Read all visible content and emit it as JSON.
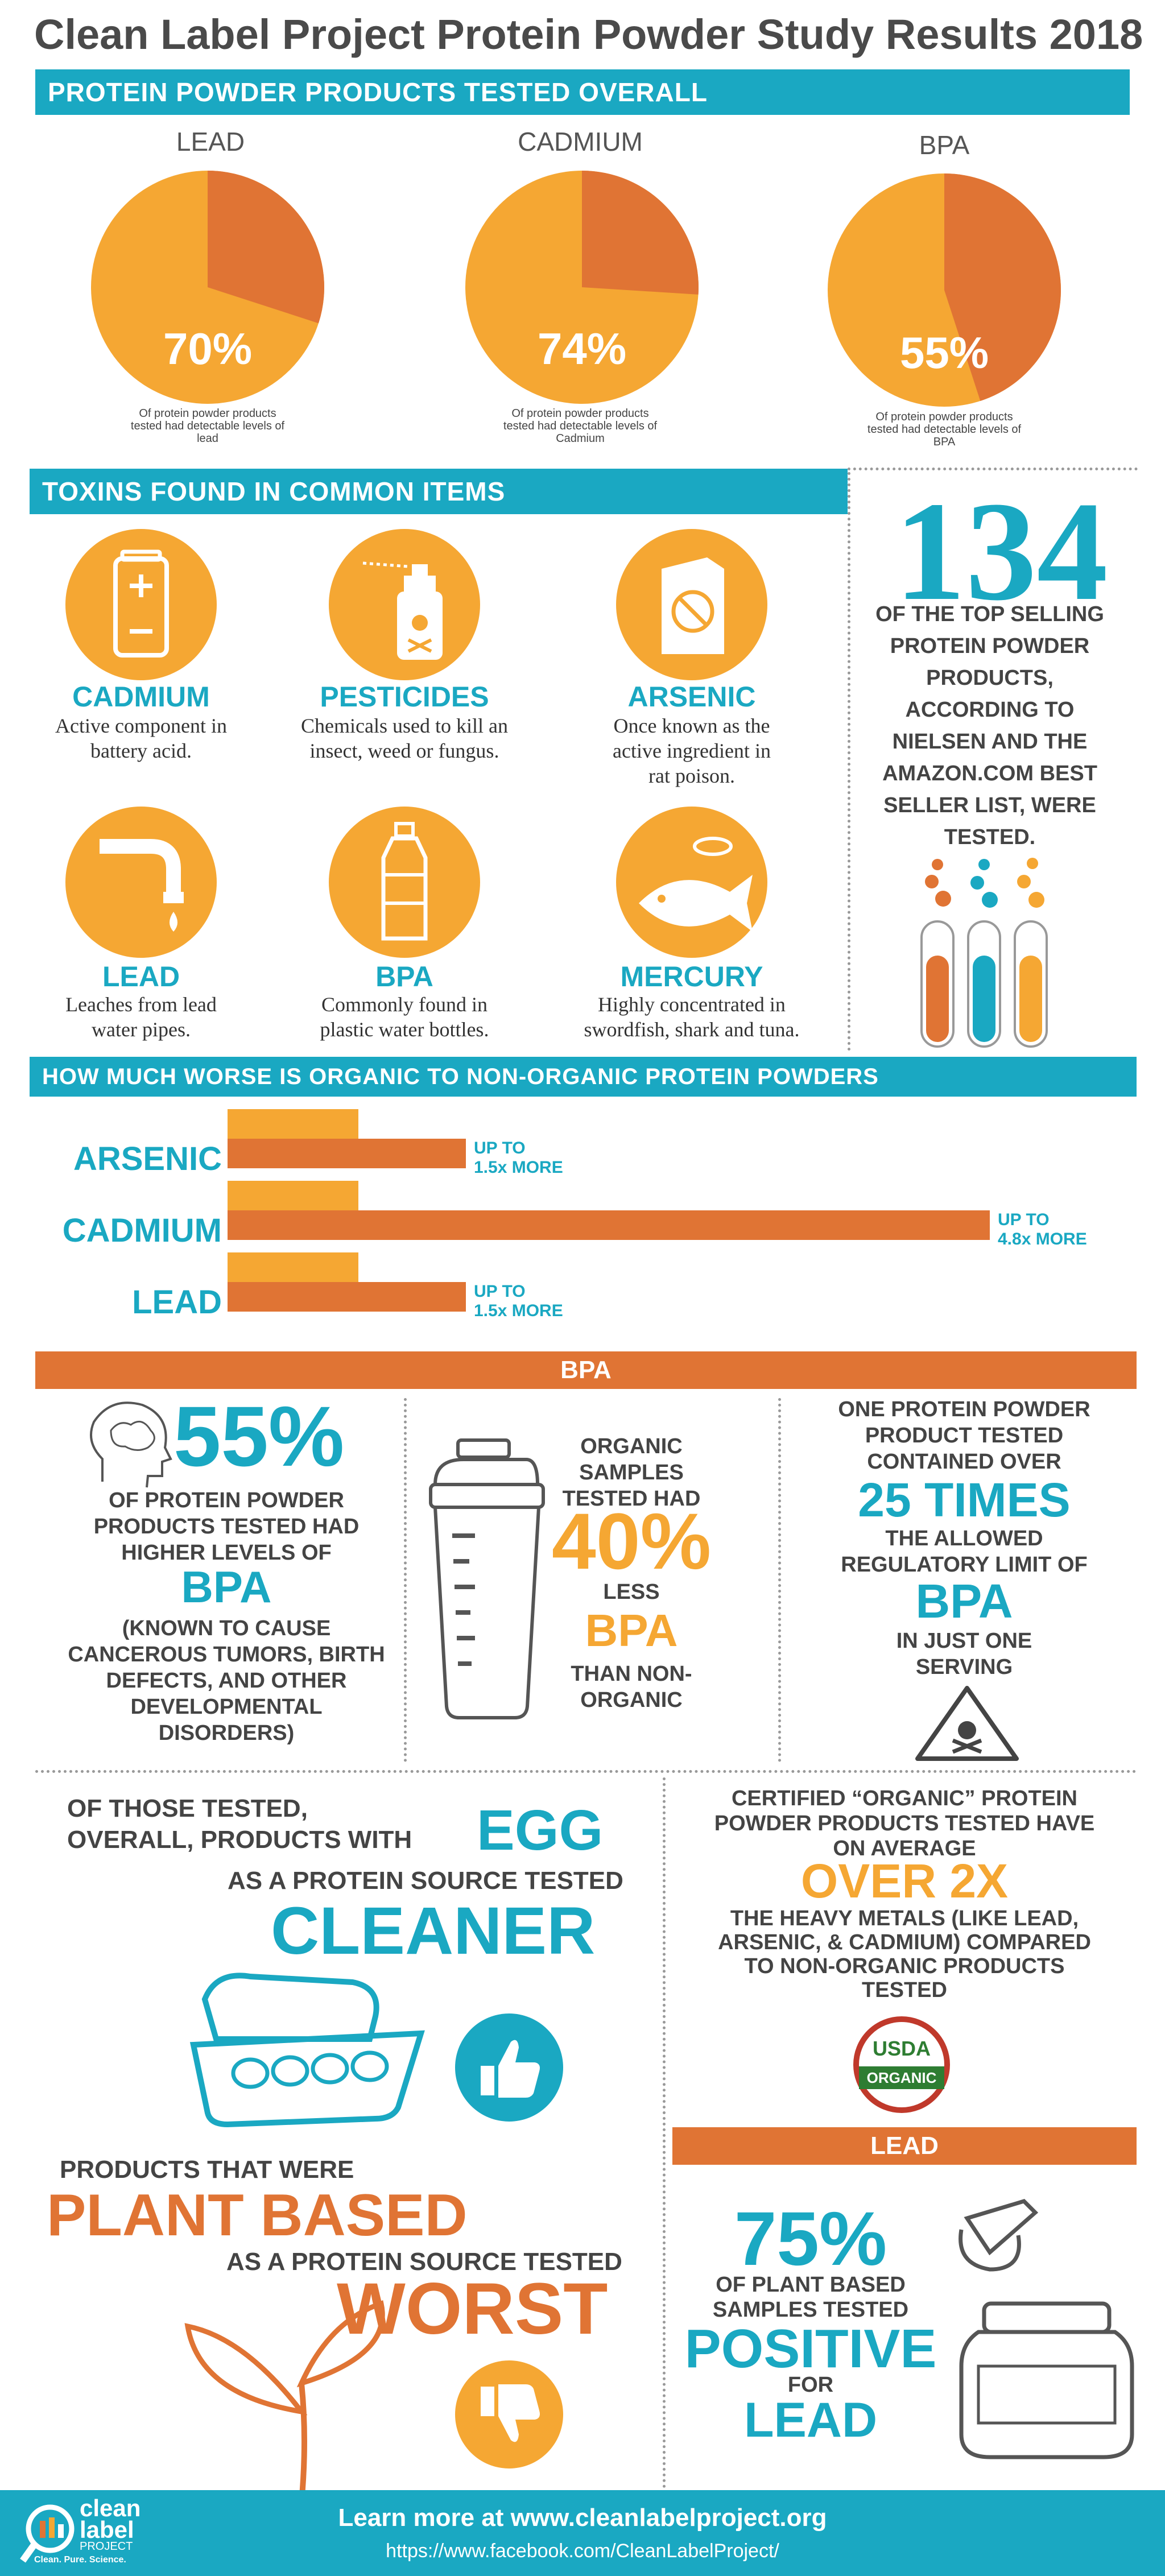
{
  "title": "Clean Label Project Protein Powder Study Results 2018",
  "colors": {
    "teal": "#1aa8c2",
    "orange": "#e07434",
    "amber": "#f5a733",
    "grey": "#4a4a4a"
  },
  "tested_overall": {
    "header": "PROTEIN POWDER PRODUCTS TESTED OVERALL",
    "pies": [
      {
        "label": "LEAD",
        "percent": "70%",
        "value": 70,
        "caption": "Of protein powder products tested had detectable levels of lead"
      },
      {
        "label": "CADMIUM",
        "percent": "74%",
        "value": 74,
        "caption": "Of protein powder products tested had detectable levels of Cadmium"
      },
      {
        "label": "BPA",
        "percent": "55%",
        "value": 55,
        "caption": "Of protein powder products tested had detectable levels of BPA"
      }
    ]
  },
  "toxins": {
    "header": "TOXINS FOUND IN COMMON ITEMS",
    "items": [
      {
        "name": "CADMIUM",
        "desc": "Active component in battery acid.",
        "icon": "battery-icon"
      },
      {
        "name": "PESTICIDES",
        "desc": "Chemicals used to kill an insect, weed or fungus.",
        "icon": "spray-can-icon"
      },
      {
        "name": "ARSENIC",
        "desc": "Once known as the active ingredient in rat poison.",
        "icon": "rat-poison-box-icon"
      },
      {
        "name": "LEAD",
        "desc": "Leaches from lead water pipes.",
        "icon": "water-pipe-icon"
      },
      {
        "name": "BPA",
        "desc": "Commonly found in plastic water bottles.",
        "icon": "water-bottle-icon"
      },
      {
        "name": "MERCURY",
        "desc": "Highly concentrated in swordfish, shark and tuna.",
        "icon": "fish-can-icon"
      }
    ]
  },
  "count": {
    "number": "134",
    "text": "OF THE TOP SELLING PROTEIN POWDER PRODUCTS, ACCORDING TO NIELSEN AND THE AMAZON.COM BEST SELLER LIST, WERE TESTED."
  },
  "organic_compare": {
    "header": "HOW MUCH WORSE IS ORGANIC TO NON-ORGANIC PROTEIN POWDERS",
    "bars": [
      {
        "label": "ARSENIC",
        "multiplier": 1.5,
        "note_line1": "UP TO",
        "note_line2": "1.5x MORE"
      },
      {
        "label": "CADMIUM",
        "multiplier": 4.8,
        "note_line1": "UP TO",
        "note_line2": "4.8x MORE"
      },
      {
        "label": "LEAD",
        "multiplier": 1.5,
        "note_line1": "UP TO",
        "note_line2": "1.5x MORE"
      }
    ]
  },
  "bpa": {
    "header": "BPA",
    "left": {
      "pct": "55%",
      "line1": "OF PROTEIN POWDER PRODUCTS TESTED HAD HIGHER LEVELS OF",
      "word": "BPA",
      "line2": "(KNOWN TO CAUSE CANCEROUS TUMORS, BIRTH DEFECTS, AND OTHER DEVELOPMENTAL DISORDERS)"
    },
    "middle": {
      "line1": "ORGANIC SAMPLES TESTED HAD",
      "pct": "40%",
      "less": "LESS",
      "word": "BPA",
      "line2": "THAN NON-ORGANIC"
    },
    "right": {
      "line1": "ONE PROTEIN POWDER PRODUCT TESTED CONTAINED OVER",
      "big": "25 TIMES",
      "line2": "THE ALLOWED REGULATORY LIMIT OF",
      "word": "BPA",
      "line3": "IN JUST ONE SERVING"
    }
  },
  "egg": {
    "line1": "OF THOSE TESTED,",
    "line2": "OVERALL, PRODUCTS WITH",
    "egg": "EGG",
    "line3": "AS A PROTEIN SOURCE TESTED",
    "big": "CLEANER"
  },
  "plant": {
    "line1": "PRODUCTS THAT WERE",
    "big1": "PLANT BASED",
    "line2": "AS A PROTEIN SOURCE TESTED",
    "big2": "WORST"
  },
  "certified": {
    "line1": "CERTIFIED “ORGANIC” PROTEIN POWDER PRODUCTS TESTED HAVE ON AVERAGE",
    "big": "OVER 2X",
    "line2": "THE HEAVY METALS (LIKE LEAD, ARSENIC, & CADMIUM) COMPARED TO NON-ORGANIC PRODUCTS TESTED",
    "usda_top": "USDA",
    "usda_bottom": "ORGANIC"
  },
  "lead_section": {
    "header": "LEAD",
    "pct": "75%",
    "line1": "OF PLANT BASED SAMPLES TESTED",
    "big": "POSITIVE",
    "for": "FOR",
    "word": "LEAD"
  },
  "footer": {
    "logo_line1": "clean",
    "logo_line2": "label",
    "logo_line3": "PROJECT",
    "tagline": "Clean. Pure. Science.",
    "learn": "Learn more at www.cleanlabelproject.org",
    "facebook": "https://www.facebook.com/CleanLabelProject/"
  }
}
